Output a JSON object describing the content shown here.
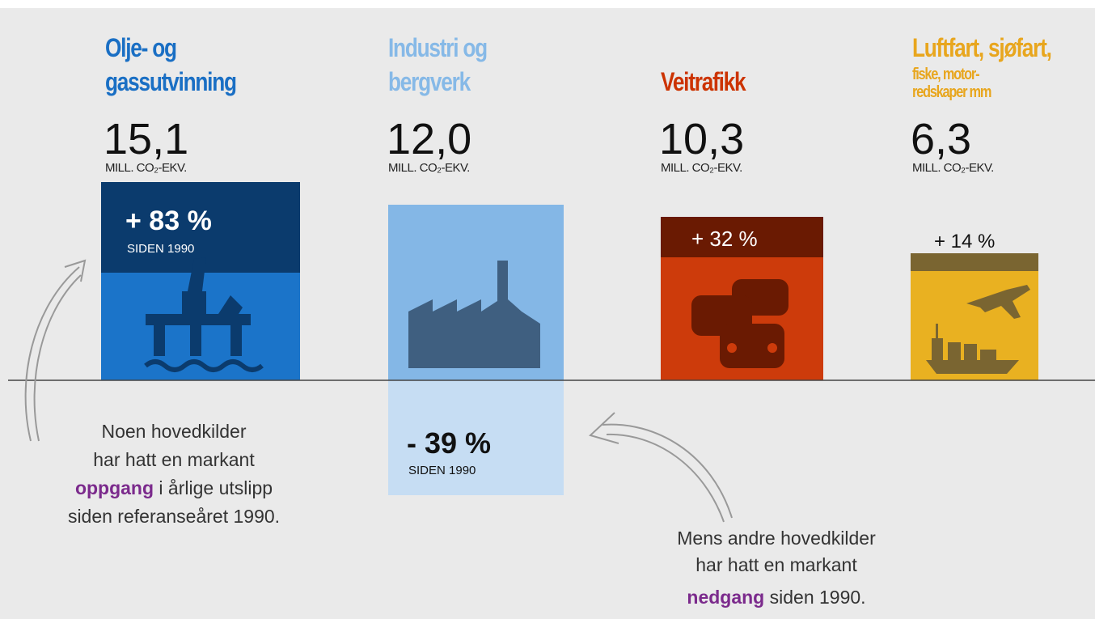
{
  "items": [
    {
      "title_lines": [
        "Olje- og",
        "gassutvinning"
      ],
      "value": "15,1",
      "unit": "MILL. CO₂-EKV.",
      "change": "+ 83 %",
      "since": "SIDEN 1990"
    },
    {
      "title_lines": [
        "Industri og",
        "bergverk"
      ],
      "value": "12,0",
      "unit": "MILL. CO₂-EKV.",
      "change": "- 39 %",
      "since": "SIDEN 1990"
    },
    {
      "title_lines": [
        "Veitrafikk"
      ],
      "value": "10,3",
      "unit": "MILL. CO₂-EKV.",
      "change": "+ 32 %"
    },
    {
      "title_lines": [
        "Luftfart, sjøfart,",
        "fiske, motor-",
        "redskaper mm"
      ],
      "value": "6,3",
      "unit": "MILL. CO₂-EKV.",
      "change": "+ 14 %"
    }
  ],
  "annotations": [
    {
      "lines": [
        [
          {
            "text": "Noen hovedkilder"
          }
        ],
        [
          {
            "text": "har hatt en markant"
          }
        ],
        [
          {
            "text": "oppgang",
            "highlight": true
          },
          {
            "text": " i årlige utslipp"
          }
        ],
        [
          {
            "text": "siden referanseåret 1990."
          }
        ]
      ]
    },
    {
      "lines": [
        [
          {
            "text": "Mens andre hovedkilder"
          }
        ],
        [
          {
            "text": "har hatt en markant"
          }
        ],
        [
          {
            "text": "nedgang",
            "highlight": true
          },
          {
            "text": " siden 1990."
          }
        ]
      ]
    }
  ]
}
